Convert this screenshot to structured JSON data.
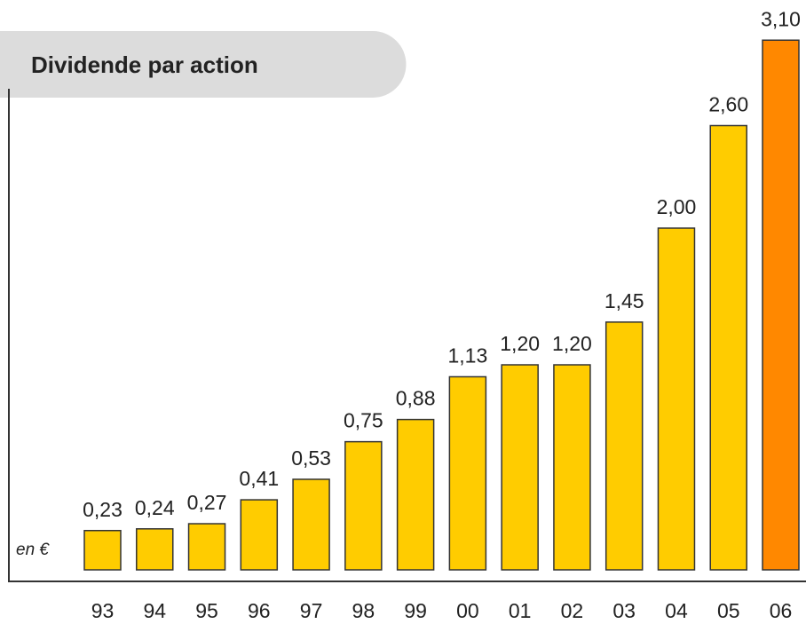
{
  "chart_data": {
    "type": "bar",
    "title": "Dividende par action",
    "annotation": "en €",
    "categories": [
      "93",
      "94",
      "95",
      "96",
      "97",
      "98",
      "99",
      "00",
      "01",
      "02",
      "03",
      "04",
      "05",
      "06"
    ],
    "values": [
      0.23,
      0.24,
      0.27,
      0.41,
      0.53,
      0.75,
      0.88,
      1.13,
      1.2,
      1.2,
      1.45,
      2.0,
      2.6,
      3.1
    ],
    "value_labels": [
      "0,23",
      "0,24",
      "0,27",
      "0,41",
      "0,53",
      "0,75",
      "0,88",
      "1,13",
      "1,20",
      "1,20",
      "1,45",
      "2,00",
      "2,60",
      "3,10"
    ],
    "colors": [
      "#ffcc00",
      "#ffcc00",
      "#ffcc00",
      "#ffcc00",
      "#ffcc00",
      "#ffcc00",
      "#ffcc00",
      "#ffcc00",
      "#ffcc00",
      "#ffcc00",
      "#ffcc00",
      "#ffcc00",
      "#ffcc00",
      "#ff8800"
    ]
  }
}
